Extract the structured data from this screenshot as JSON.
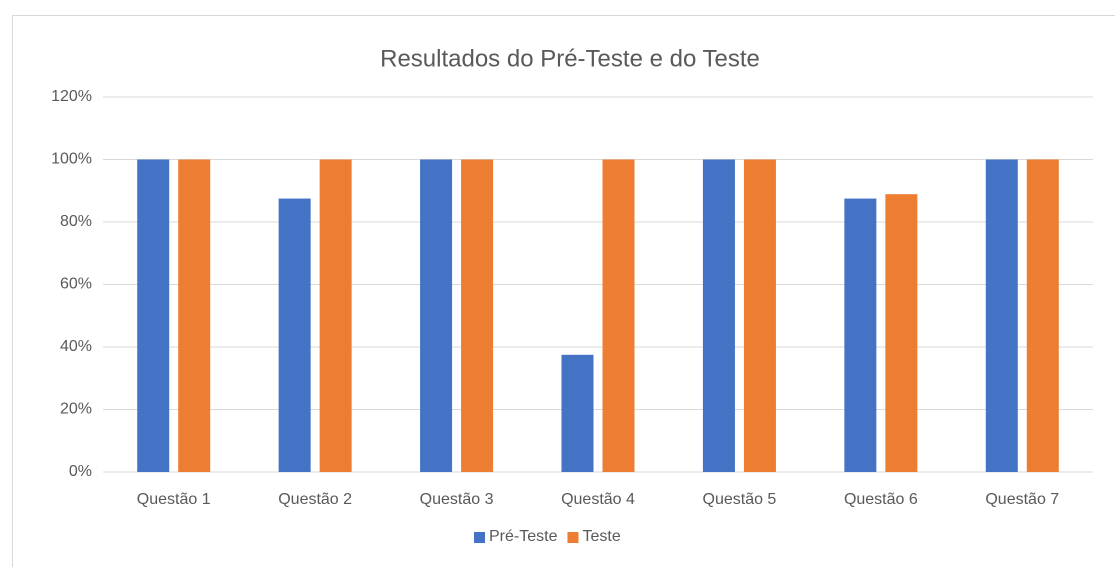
{
  "chart_data": {
    "type": "bar",
    "title": "Resultados do Pré-Teste e do Teste",
    "categories": [
      "Questão 1",
      "Questão 2",
      "Questão 3",
      "Questão 4",
      "Questão 5",
      "Questão 6",
      "Questão 7"
    ],
    "series": [
      {
        "name": "Pré-Teste",
        "color": "#4472c4",
        "values": [
          100,
          87.5,
          100,
          37.5,
          100,
          87.5,
          100
        ]
      },
      {
        "name": "Teste",
        "color": "#ed7d31",
        "values": [
          100,
          100,
          100,
          100,
          100,
          88.9,
          100
        ]
      }
    ],
    "ylim": [
      0,
      120
    ],
    "yticks": [
      {
        "value": 0,
        "label": "0%"
      },
      {
        "value": 20,
        "label": "20%"
      },
      {
        "value": 40,
        "label": "40%"
      },
      {
        "value": 60,
        "label": "60%"
      },
      {
        "value": 80,
        "label": "80%"
      },
      {
        "value": 100,
        "label": "100%"
      },
      {
        "value": 120,
        "label": "120%"
      }
    ],
    "grid": true,
    "legend": "bottom"
  }
}
